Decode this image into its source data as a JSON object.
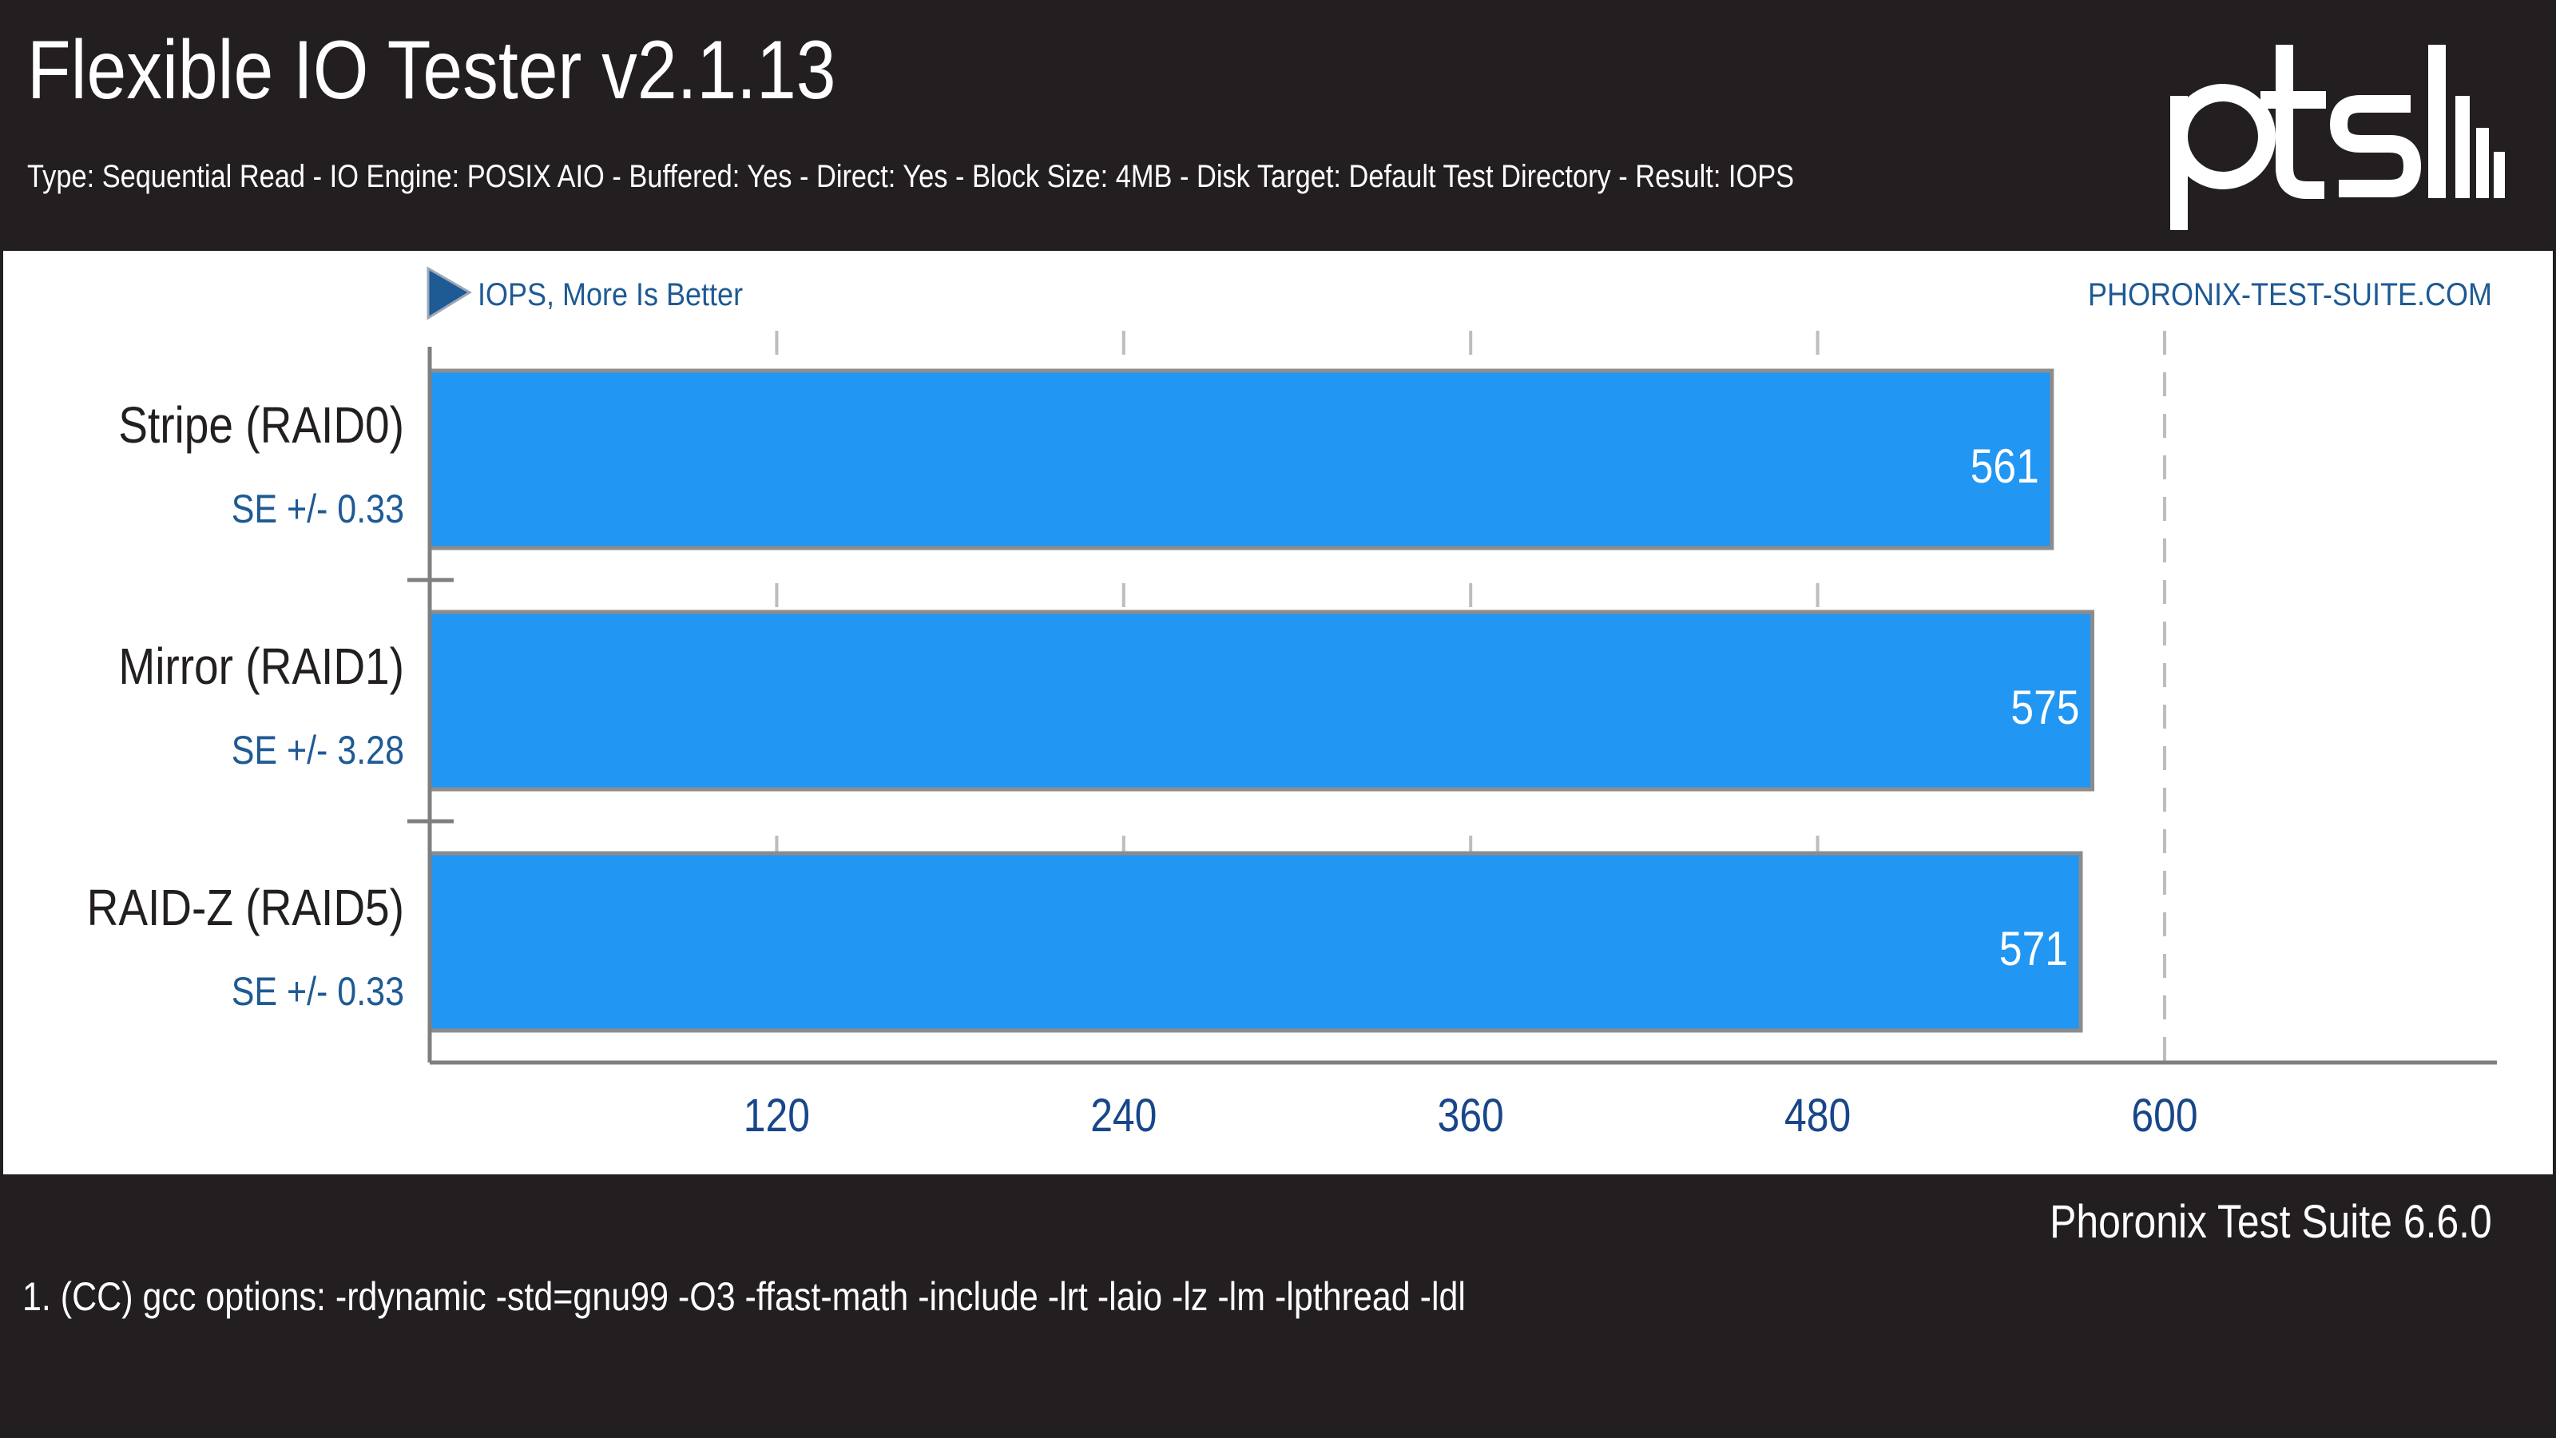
{
  "header": {
    "title": "Flexible IO Tester v2.1.13",
    "subtitle": "Type: Sequential Read - IO Engine: POSIX AIO - Buffered: Yes - Direct: Yes - Block Size: 4MB - Disk Target: Default Test Directory - Result: IOPS",
    "logo_text": "ptsl"
  },
  "plot": {
    "metric_label": "IOPS, More Is Better",
    "site_label": "PHORONIX-TEST-SUITE.COM"
  },
  "chart_data": {
    "type": "bar",
    "orientation": "horizontal",
    "categories": [
      "Stripe (RAID0)",
      "Mirror (RAID1)",
      "RAID-Z (RAID5)"
    ],
    "values": [
      561,
      575,
      571
    ],
    "errors": [
      "SE +/- 0.33",
      "SE +/- 3.28",
      "SE +/- 0.33"
    ],
    "xlabel": "IOPS, More Is Better",
    "xlim": [
      0,
      720
    ],
    "xticks": [
      120,
      240,
      360,
      480,
      600
    ],
    "grid": true,
    "colors": {
      "bar": "#2196f3",
      "bar_border": "#8c8c8c",
      "label_blue": "#1e5a94",
      "tick_blue": "#17468a",
      "axis": "#7f7f7f"
    }
  },
  "footer": {
    "version": "Phoronix Test Suite 6.6.0",
    "note": "1. (CC) gcc options: -rdynamic -std=gnu99 -O3 -ffast-math -include -lrt -laio -lz -lm -lpthread -ldl"
  },
  "colors": {
    "background": "#231f20",
    "panel": "#ffffff",
    "text_light": "#ffffff"
  }
}
